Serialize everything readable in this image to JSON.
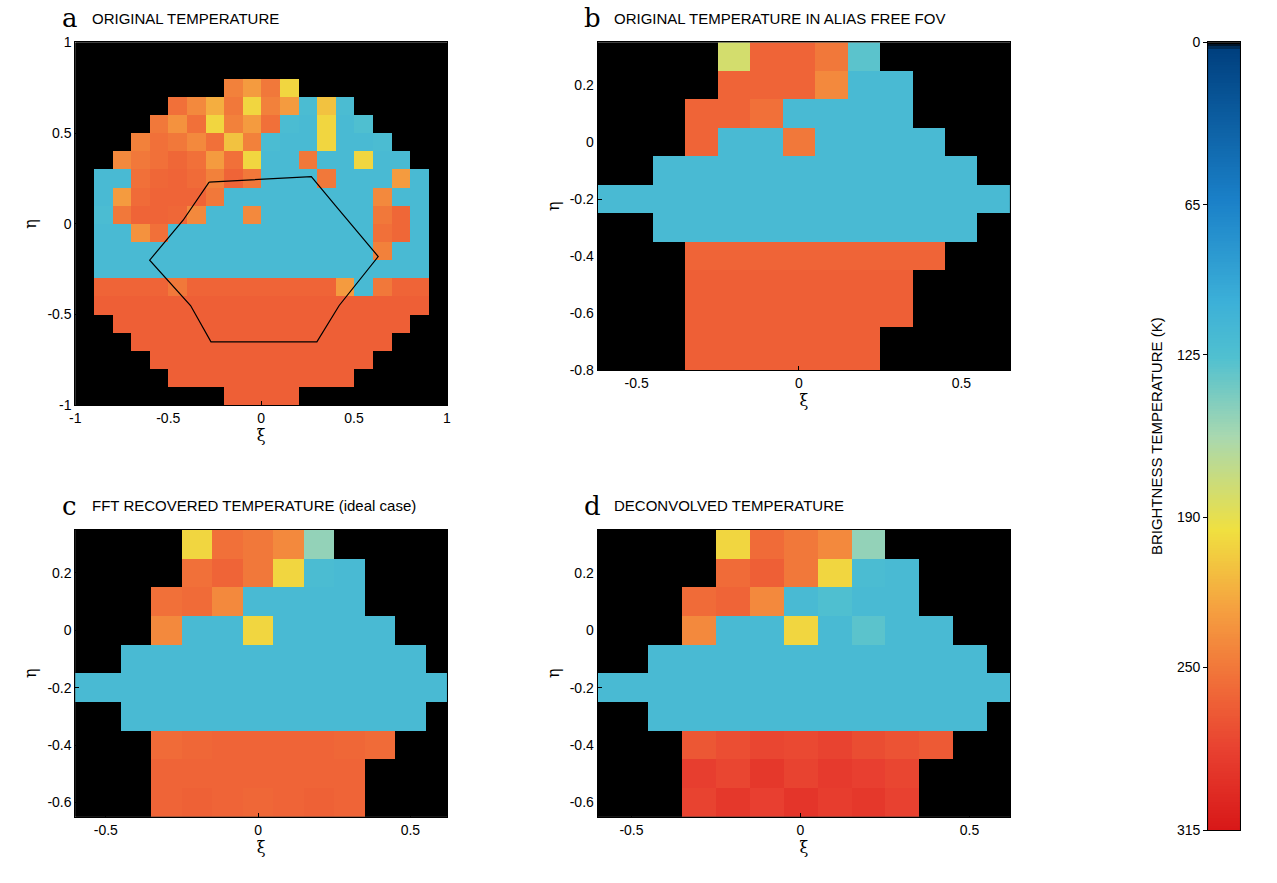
{
  "chart_data": [
    {
      "type": "heatmap",
      "letter": "a",
      "title": "ORIGINAL TEMPERATURE",
      "x_label": "ξ",
      "y_label": "η",
      "xlim": [
        -1,
        1
      ],
      "ylim": [
        -1,
        1
      ],
      "xticks": [
        -1,
        -0.5,
        0,
        0.5,
        1
      ],
      "yticks": [
        -1,
        -0.5,
        0,
        0.5,
        1
      ],
      "x": [
        -0.95,
        -0.85,
        -0.75,
        -0.65,
        -0.55,
        -0.45,
        -0.35,
        -0.25,
        -0.15,
        -0.05,
        0.05,
        0.15,
        0.25,
        0.35,
        0.45,
        0.55,
        0.65,
        0.75,
        0.85,
        0.95
      ],
      "y": [
        0.95,
        0.85,
        0.75,
        0.65,
        0.55,
        0.45,
        0.35,
        0.25,
        0.15,
        0.05,
        -0.05,
        -0.15,
        -0.25,
        -0.35,
        -0.45,
        -0.55,
        -0.65,
        -0.75,
        -0.85,
        -0.95
      ],
      "z": [
        [
          0,
          0,
          0,
          0,
          0,
          0,
          0,
          0,
          0,
          0,
          0,
          0,
          0,
          0,
          0,
          0,
          0,
          0,
          0,
          0
        ],
        [
          0,
          0,
          0,
          0,
          0,
          0,
          0,
          0,
          0,
          0,
          0,
          0,
          0,
          0,
          0,
          0,
          0,
          0,
          0,
          0
        ],
        [
          0,
          0,
          0,
          0,
          0,
          0,
          0,
          0,
          245,
          230,
          250,
          200,
          0,
          0,
          0,
          0,
          0,
          0,
          0,
          0
        ],
        [
          0,
          0,
          0,
          0,
          0,
          255,
          240,
          220,
          250,
          200,
          245,
          230,
          120,
          210,
          120,
          0,
          0,
          0,
          0,
          0
        ],
        [
          0,
          0,
          0,
          0,
          250,
          235,
          255,
          200,
          245,
          230,
          255,
          120,
          118,
          200,
          118,
          125,
          0,
          0,
          0,
          0
        ],
        [
          0,
          0,
          0,
          245,
          255,
          250,
          240,
          255,
          210,
          245,
          120,
          118,
          118,
          200,
          118,
          118,
          120,
          0,
          0,
          0
        ],
        [
          0,
          0,
          240,
          250,
          255,
          260,
          255,
          230,
          255,
          200,
          118,
          118,
          250,
          118,
          118,
          200,
          118,
          118,
          0,
          0
        ],
        [
          0,
          118,
          118,
          255,
          260,
          262,
          258,
          245,
          262,
          250,
          118,
          118,
          118,
          250,
          118,
          118,
          118,
          230,
          118,
          0
        ],
        [
          0,
          118,
          230,
          258,
          262,
          262,
          262,
          250,
          118,
          118,
          118,
          118,
          118,
          118,
          118,
          118,
          240,
          118,
          118,
          0
        ],
        [
          0,
          120,
          250,
          262,
          262,
          260,
          240,
          118,
          118,
          240,
          118,
          118,
          118,
          118,
          118,
          118,
          250,
          260,
          118,
          0
        ],
        [
          0,
          118,
          118,
          235,
          255,
          118,
          118,
          118,
          118,
          118,
          118,
          118,
          118,
          118,
          118,
          118,
          255,
          260,
          118,
          0
        ],
        [
          0,
          118,
          118,
          118,
          118,
          118,
          118,
          118,
          118,
          118,
          118,
          118,
          118,
          118,
          118,
          118,
          245,
          118,
          118,
          0
        ],
        [
          0,
          118,
          118,
          118,
          118,
          118,
          118,
          118,
          118,
          118,
          118,
          118,
          118,
          118,
          118,
          118,
          118,
          118,
          118,
          0
        ],
        [
          0,
          262,
          262,
          262,
          262,
          250,
          262,
          262,
          262,
          262,
          262,
          262,
          262,
          262,
          230,
          118,
          250,
          262,
          262,
          0
        ],
        [
          0,
          265,
          265,
          265,
          265,
          265,
          265,
          265,
          265,
          265,
          265,
          265,
          265,
          265,
          265,
          265,
          265,
          265,
          265,
          0
        ],
        [
          0,
          0,
          265,
          265,
          265,
          265,
          265,
          265,
          265,
          265,
          265,
          265,
          265,
          265,
          265,
          265,
          265,
          265,
          0,
          0
        ],
        [
          0,
          0,
          0,
          265,
          265,
          265,
          265,
          265,
          265,
          265,
          265,
          265,
          265,
          265,
          265,
          265,
          265,
          0,
          0,
          0
        ],
        [
          0,
          0,
          0,
          0,
          265,
          265,
          265,
          265,
          265,
          265,
          265,
          265,
          265,
          265,
          265,
          265,
          0,
          0,
          0,
          0
        ],
        [
          0,
          0,
          0,
          0,
          0,
          265,
          265,
          265,
          265,
          265,
          265,
          265,
          265,
          265,
          265,
          0,
          0,
          0,
          0,
          0
        ],
        [
          0,
          0,
          0,
          0,
          0,
          0,
          0,
          0,
          265,
          265,
          265,
          265,
          0,
          0,
          0,
          0,
          0,
          0,
          0,
          0
        ]
      ],
      "outline": {
        "x": [
          -0.28,
          0.27,
          0.4,
          0.63,
          0.42,
          0.3,
          -0.27,
          -0.38,
          -0.6,
          -0.42,
          -0.28
        ],
        "y": [
          0.23,
          0.26,
          0.1,
          -0.18,
          -0.45,
          -0.65,
          -0.65,
          -0.45,
          -0.2,
          0.02,
          0.23
        ]
      }
    },
    {
      "type": "heatmap",
      "letter": "b",
      "title": "ORIGINAL TEMPERATURE IN ALIAS FREE FOV",
      "x_label": "ξ",
      "y_label": "η",
      "xlim": [
        -0.62,
        0.65
      ],
      "ylim": [
        -0.8,
        0.35
      ],
      "xticks": [
        -0.5,
        0,
        0.5
      ],
      "yticks": [
        -0.8,
        -0.6,
        -0.4,
        -0.2,
        0,
        0.2
      ],
      "x": [
        -0.6,
        -0.5,
        -0.4,
        -0.3,
        -0.2,
        -0.1,
        0,
        0.1,
        0.2,
        0.3,
        0.4,
        0.5,
        0.6
      ],
      "y": [
        0.3,
        0.2,
        0.1,
        0,
        -0.1,
        -0.2,
        -0.3,
        -0.4,
        -0.5,
        -0.6,
        -0.7,
        -0.8
      ],
      "z": [
        [
          0,
          0,
          0,
          0,
          180,
          262,
          262,
          250,
          130,
          0,
          0,
          0,
          0
        ],
        [
          0,
          0,
          0,
          0,
          262,
          262,
          262,
          240,
          118,
          118,
          0,
          0,
          0
        ],
        [
          0,
          0,
          0,
          262,
          262,
          255,
          118,
          118,
          118,
          118,
          0,
          0,
          0
        ],
        [
          0,
          0,
          0,
          262,
          118,
          118,
          250,
          118,
          118,
          118,
          118,
          0,
          0
        ],
        [
          0,
          0,
          118,
          118,
          118,
          118,
          118,
          118,
          118,
          118,
          118,
          118,
          0
        ],
        [
          118,
          118,
          118,
          118,
          118,
          118,
          118,
          118,
          118,
          118,
          118,
          118,
          118
        ],
        [
          0,
          0,
          118,
          118,
          118,
          118,
          118,
          118,
          118,
          118,
          118,
          118,
          0
        ],
        [
          0,
          0,
          0,
          262,
          262,
          262,
          262,
          262,
          262,
          262,
          262,
          0,
          0
        ],
        [
          0,
          0,
          0,
          265,
          265,
          265,
          265,
          265,
          265,
          265,
          0,
          0,
          0
        ],
        [
          0,
          0,
          0,
          265,
          265,
          265,
          265,
          265,
          265,
          265,
          0,
          0,
          0
        ],
        [
          0,
          0,
          0,
          265,
          265,
          265,
          265,
          265,
          265,
          0,
          0,
          0,
          0
        ],
        [
          0,
          0,
          0,
          265,
          265,
          265,
          265,
          265,
          265,
          0,
          0,
          0,
          0
        ]
      ]
    },
    {
      "type": "heatmap",
      "letter": "c",
      "title": "FFT RECOVERED TEMPERATURE (ideal case)",
      "x_label": "ξ",
      "y_label": "η",
      "xlim": [
        -0.6,
        0.62
      ],
      "ylim": [
        -0.65,
        0.35
      ],
      "xticks": [
        -0.5,
        0,
        0.5
      ],
      "yticks": [
        -0.6,
        -0.4,
        -0.2,
        0,
        0.2
      ],
      "x": [
        -0.6,
        -0.5,
        -0.4,
        -0.3,
        -0.2,
        -0.1,
        0,
        0.1,
        0.2,
        0.3,
        0.4,
        0.5,
        0.6
      ],
      "y": [
        0.3,
        0.2,
        0.1,
        0,
        -0.1,
        -0.2,
        -0.3,
        -0.4,
        -0.5,
        -0.6
      ],
      "z": [
        [
          0,
          0,
          0,
          0,
          200,
          255,
          250,
          240,
          150,
          0,
          0,
          0,
          0
        ],
        [
          0,
          0,
          0,
          0,
          255,
          262,
          250,
          200,
          120,
          118,
          0,
          0,
          0
        ],
        [
          0,
          0,
          0,
          255,
          258,
          240,
          118,
          118,
          118,
          118,
          0,
          0,
          0
        ],
        [
          0,
          0,
          0,
          240,
          118,
          118,
          200,
          118,
          118,
          118,
          118,
          0,
          0
        ],
        [
          0,
          0,
          118,
          118,
          118,
          118,
          118,
          118,
          118,
          118,
          118,
          118,
          0
        ],
        [
          118,
          118,
          118,
          118,
          118,
          118,
          118,
          118,
          118,
          118,
          118,
          118,
          118
        ],
        [
          0,
          0,
          118,
          118,
          118,
          118,
          118,
          118,
          118,
          118,
          118,
          118,
          0
        ],
        [
          0,
          0,
          0,
          258,
          260,
          262,
          262,
          262,
          262,
          260,
          258,
          0,
          0
        ],
        [
          0,
          0,
          0,
          262,
          262,
          262,
          262,
          262,
          262,
          262,
          0,
          0,
          0
        ],
        [
          0,
          0,
          0,
          262,
          264,
          262,
          260,
          262,
          264,
          262,
          0,
          0,
          0
        ]
      ]
    },
    {
      "type": "heatmap",
      "letter": "d",
      "title": "DECONVOLVED TEMPERATURE",
      "x_label": "ξ",
      "y_label": "η",
      "xlim": [
        -0.6,
        0.62
      ],
      "ylim": [
        -0.65,
        0.35
      ],
      "xticks": [
        -0.5,
        0,
        0.5
      ],
      "yticks": [
        -0.6,
        -0.4,
        -0.2,
        0,
        0.2
      ],
      "x": [
        -0.6,
        -0.5,
        -0.4,
        -0.3,
        -0.2,
        -0.1,
        0,
        0.1,
        0.2,
        0.3,
        0.4,
        0.5,
        0.6
      ],
      "y": [
        0.3,
        0.2,
        0.1,
        0,
        -0.1,
        -0.2,
        -0.3,
        -0.4,
        -0.5,
        -0.6
      ],
      "z": [
        [
          0,
          0,
          0,
          0,
          200,
          258,
          250,
          240,
          150,
          0,
          0,
          0,
          0
        ],
        [
          0,
          0,
          0,
          0,
          258,
          265,
          250,
          200,
          120,
          118,
          0,
          0,
          0
        ],
        [
          0,
          0,
          0,
          258,
          262,
          240,
          118,
          125,
          118,
          118,
          0,
          0,
          0
        ],
        [
          0,
          0,
          0,
          240,
          118,
          118,
          200,
          118,
          130,
          118,
          118,
          0,
          0
        ],
        [
          0,
          0,
          118,
          118,
          118,
          118,
          118,
          118,
          118,
          118,
          118,
          118,
          0
        ],
        [
          118,
          118,
          118,
          118,
          118,
          118,
          118,
          118,
          118,
          118,
          118,
          118,
          118
        ],
        [
          0,
          0,
          118,
          118,
          118,
          118,
          118,
          118,
          118,
          118,
          118,
          118,
          0
        ],
        [
          0,
          0,
          0,
          270,
          275,
          280,
          278,
          282,
          276,
          272,
          268,
          0,
          0
        ],
        [
          0,
          0,
          0,
          285,
          280,
          290,
          282,
          288,
          284,
          280,
          0,
          0,
          0
        ],
        [
          0,
          0,
          0,
          282,
          290,
          284,
          292,
          286,
          290,
          283,
          0,
          0,
          0
        ]
      ]
    },
    {
      "type": "colorbar",
      "title": "BRIGHTNESS TEMPERATURE (K)",
      "zlim": [
        0,
        315
      ],
      "zticks": [
        0,
        65,
        125,
        190,
        250,
        315
      ]
    }
  ]
}
